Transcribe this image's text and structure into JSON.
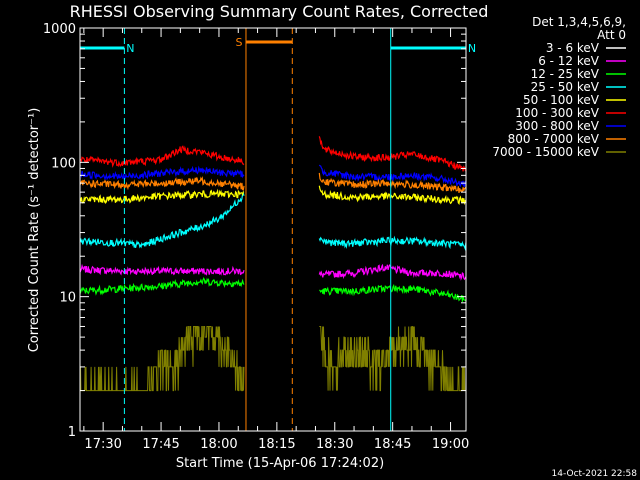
{
  "chart_data": {
    "type": "line",
    "title": "RHESSI Observing Summary Count Rates, Corrected",
    "xlabel": "Start Time (15-Apr-06 17:24:02)",
    "ylabel": "Corrected Count Rate (s⁻¹ detector⁻¹)",
    "yscale": "log",
    "ylim": [
      1,
      1000
    ],
    "xlim_minutes_after_17_00": [
      24,
      124
    ],
    "x_ticks": [
      {
        "label": "17:30",
        "t": 30
      },
      {
        "label": "17:45",
        "t": 45
      },
      {
        "label": "18:00",
        "t": 60
      },
      {
        "label": "18:15",
        "t": 75
      },
      {
        "label": "18:30",
        "t": 90
      },
      {
        "label": "18:45",
        "t": 105
      },
      {
        "label": "19:00",
        "t": 120
      }
    ],
    "y_ticks": [
      {
        "label": "1",
        "v": 1
      },
      {
        "label": "10",
        "v": 10
      },
      {
        "label": "100",
        "v": 100
      },
      {
        "label": "1000",
        "v": 1000
      }
    ],
    "legend_header": [
      "Det 1,3,4,5,6,9,",
      "Att 0"
    ],
    "legend_position": "right",
    "gaps": [
      [
        67,
        86
      ]
    ],
    "series": [
      {
        "name": "3 - 6 keV",
        "color": "#ffffff",
        "t": [],
        "values": []
      },
      {
        "name": "6 - 12 keV",
        "color": "#ff00ff",
        "t": [
          24,
          35,
          45,
          55,
          66.5,
          86,
          95,
          103,
          110,
          118,
          124
        ],
        "values": [
          16,
          15.5,
          15.5,
          15.5,
          15.5,
          14.5,
          15,
          16.5,
          15,
          15,
          14
        ]
      },
      {
        "name": "12 - 25 keV",
        "color": "#00ff00",
        "t": [
          24,
          35,
          45,
          55,
          66.5,
          86,
          95,
          103,
          110,
          118,
          124
        ],
        "values": [
          11,
          11.5,
          12,
          13,
          12.5,
          11,
          11,
          11.5,
          11.5,
          10.5,
          9.5
        ]
      },
      {
        "name": "25 - 50 keV",
        "color": "#00ffff",
        "t": [
          24,
          35,
          40,
          45,
          50,
          55,
          60,
          63,
          66.5,
          86,
          87,
          90,
          95,
          103,
          110,
          118,
          124
        ],
        "values": [
          26,
          25,
          24,
          27,
          30,
          33,
          38,
          45,
          58,
          28,
          26,
          25,
          25,
          26,
          26,
          25,
          24
        ]
      },
      {
        "name": "50 - 100 keV",
        "color": "#ffff00",
        "t": [
          24,
          35,
          45,
          55,
          60,
          66.5,
          86,
          87,
          95,
          103,
          110,
          118,
          124
        ],
        "values": [
          53,
          53,
          56,
          58,
          58,
          58,
          64,
          58,
          55,
          56,
          55,
          53,
          52
        ]
      },
      {
        "name": "100 - 300 keV",
        "color": "#ff0000",
        "t": [
          24,
          35,
          45,
          50,
          55,
          60,
          66.5,
          86,
          87,
          95,
          103,
          110,
          118,
          124
        ],
        "values": [
          105,
          99,
          105,
          125,
          120,
          110,
          102,
          155,
          125,
          110,
          108,
          115,
          102,
          88
        ]
      },
      {
        "name": "300 - 800 keV",
        "color": "#0000ff",
        "t": [
          24,
          35,
          45,
          55,
          60,
          66.5,
          86,
          87,
          95,
          103,
          110,
          118,
          124
        ],
        "values": [
          82,
          78,
          83,
          88,
          84,
          82,
          93,
          85,
          78,
          78,
          80,
          75,
          68
        ]
      },
      {
        "name": "800 - 7000 keV",
        "color": "#ff8000",
        "t": [
          24,
          35,
          45,
          55,
          60,
          66.5,
          86,
          87,
          95,
          103,
          110,
          118,
          124
        ],
        "values": [
          70,
          68,
          70,
          73,
          70,
          66,
          80,
          72,
          68,
          70,
          68,
          65,
          62
        ]
      },
      {
        "name": "7000 - 15000 keV",
        "color": "#808000",
        "t": [
          24,
          30,
          35,
          40,
          45,
          48,
          52,
          56,
          60,
          64,
          66.5,
          86,
          89,
          93,
          97,
          101,
          105,
          109,
          113,
          117,
          121,
          124
        ],
        "values": [
          2,
          2,
          2,
          2,
          3,
          3,
          5,
          6,
          5,
          3,
          2,
          6,
          3,
          4,
          4,
          3,
          4,
          5,
          4,
          3,
          2,
          2
        ]
      }
    ],
    "annotations": [
      {
        "label": "N",
        "color": "#00ffff",
        "solid_bar": [
          24,
          35.5
        ],
        "dashed_at": 35.5,
        "solid_at": [
          24
        ]
      },
      {
        "label": "S",
        "color": "#ff8000",
        "solid_bar": [
          67,
          79
        ],
        "dashed_at": 79,
        "solid_at": [
          67
        ]
      },
      {
        "label": "N",
        "color": "#00ffff",
        "solid_bar": [
          104.5,
          124
        ],
        "dashed_at": 124,
        "solid_at": [
          104.5
        ]
      }
    ],
    "timestamp": "14-Oct-2021 22:58"
  }
}
